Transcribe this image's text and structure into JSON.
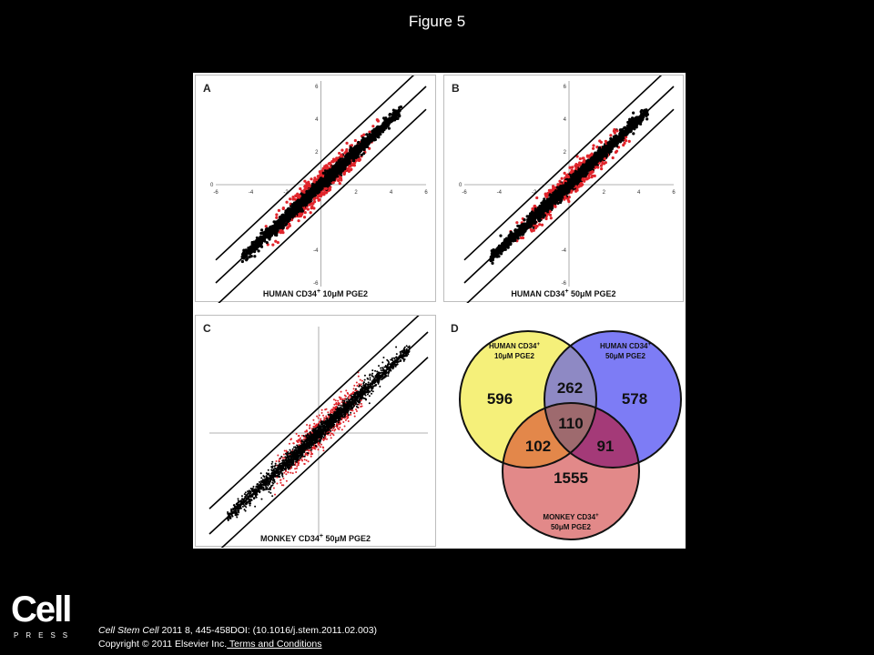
{
  "page": {
    "title": "Figure 5",
    "citation_journal": "Cell Stem Cell",
    "citation_rest": " 2011 8, 445-458DOI: (10.1016/j.stem.2011.02.003)",
    "copyright": "Copyright © 2011 Elsevier Inc.",
    "terms_link": " Terms and Conditions",
    "logo_word": "Cell",
    "logo_sub": "PRESS"
  },
  "colors": {
    "red": "#e0242b",
    "black": "#000000",
    "yellow": "#f5f07a",
    "blue": "#7d7cf5",
    "pink": "#e28989"
  },
  "panels": {
    "A": {
      "letter": "A",
      "xlabel_main": "HUMAN CD34",
      "xlabel_sup": "+",
      "xlabel_rest": " 10μM PGE2"
    },
    "B": {
      "letter": "B",
      "xlabel_main": "HUMAN CD34",
      "xlabel_sup": "+",
      "xlabel_rest": " 50μM PGE2"
    },
    "C": {
      "letter": "C",
      "xlabel_main": "MONKEY CD34",
      "xlabel_sup": "+",
      "xlabel_rest": " 50μM PGE2"
    },
    "D": {
      "letter": "D"
    }
  },
  "chart_data": [
    {
      "type": "scatter",
      "panel": "A",
      "xlim": [
        -6,
        6
      ],
      "ylim": [
        -6,
        6
      ],
      "x_ticks": [
        "-6",
        "-4",
        "-2",
        "2",
        "4",
        "6"
      ],
      "y_ticks": [
        "6",
        "4",
        "2",
        "-4",
        "-6"
      ],
      "y_zero_label": "0",
      "xlabel": "HUMAN CD34+ 10μM PGE2"
    },
    {
      "type": "scatter",
      "panel": "B",
      "xlim": [
        -6,
        6
      ],
      "ylim": [
        -6,
        6
      ],
      "x_ticks": [
        "-6",
        "-4",
        "-2",
        "2",
        "4",
        "6"
      ],
      "y_ticks": [
        "6",
        "4",
        "2",
        "-4",
        "-6"
      ],
      "y_zero_label": "0",
      "xlabel": "HUMAN CD34+ 50μM PGE2"
    },
    {
      "type": "scatter",
      "panel": "C",
      "xlim": [
        -6,
        6
      ],
      "ylim": [
        -6,
        6
      ],
      "xlabel": "MONKEY CD34+ 50μM PGE2"
    },
    {
      "type": "venn",
      "panel": "D",
      "sets": [
        {
          "label_line1": "HUMAN CD34",
          "sup": "+",
          "label_line2": "10μM PGE2"
        },
        {
          "label_line1": "HUMAN CD34",
          "sup": "+",
          "label_line2": "50μM PGE2"
        },
        {
          "label_line1": "MONKEY CD34",
          "sup": "+",
          "label_line2": "50μM PGE2"
        }
      ],
      "regions": {
        "only_human10": "596",
        "only_human50": "578",
        "only_monkey": "1555",
        "human10_human50": "262",
        "human10_monkey": "102",
        "human50_monkey": "91",
        "all_three": "110"
      }
    }
  ]
}
